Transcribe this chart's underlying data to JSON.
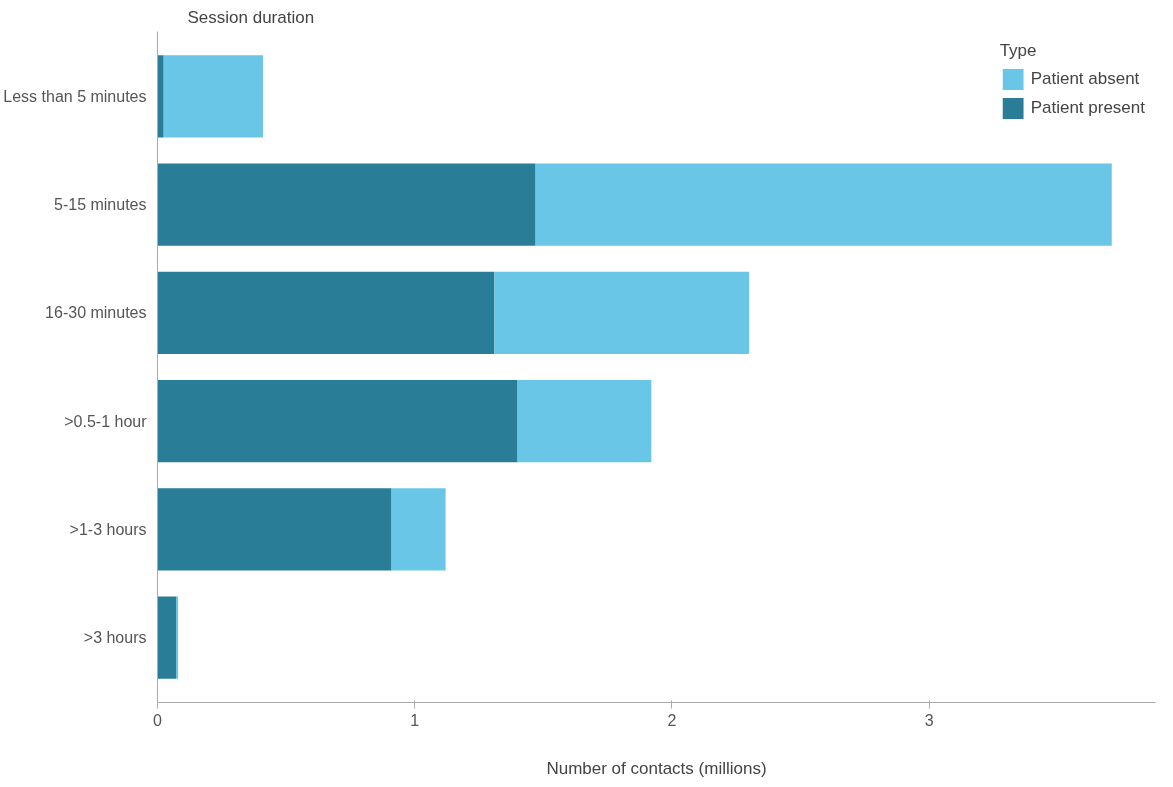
{
  "chart_data": {
    "type": "bar",
    "orientation": "horizontal",
    "stacked": true,
    "ylabel": "Session duration",
    "xlabel": "Number of contacts (millions)",
    "legend_title": "Type",
    "legend": "top right",
    "grid": false,
    "categories": [
      "Less than 5 minutes",
      "5-15 minutes",
      "16-30 minutes",
      ">0.5-1 hour",
      ">1-3 hours",
      ">3 hours"
    ],
    "series": [
      {
        "name": "Patient present",
        "color": "#2a7d97",
        "values": [
          0.024,
          1.47,
          1.31,
          1.4,
          0.91,
          0.072
        ]
      },
      {
        "name": "Patient absent",
        "color": "#69c6e6",
        "values": [
          0.386,
          2.24,
          0.99,
          0.52,
          0.21,
          0.008
        ]
      }
    ],
    "xlim": [
      0,
      3.88
    ],
    "xticks": [
      0,
      1,
      2,
      3
    ]
  }
}
